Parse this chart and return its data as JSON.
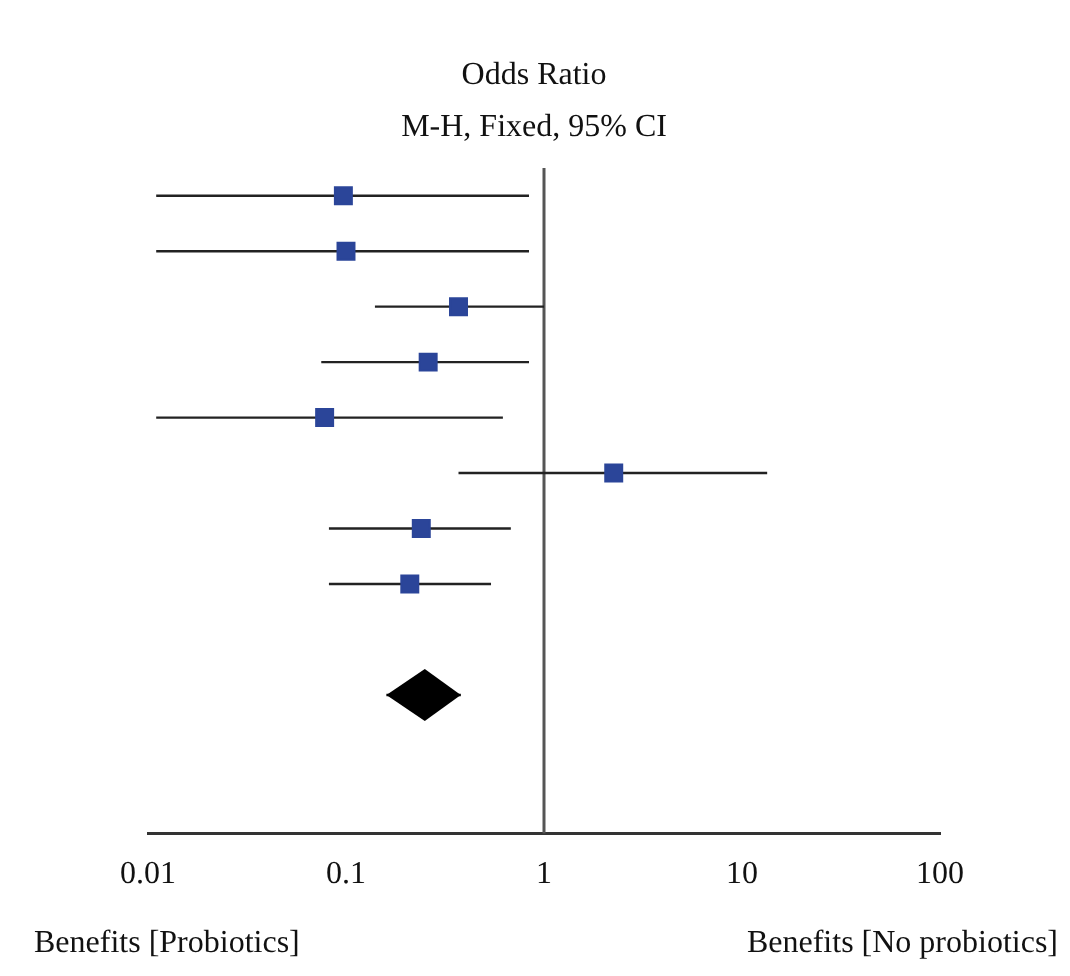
{
  "chart_data": {
    "type": "scatter",
    "title": "Odds Ratio",
    "subtitle": "M-H, Fixed, 95% CI",
    "orientation": "horizontal",
    "categories": [
      null,
      null,
      null,
      null,
      null,
      null,
      null,
      null,
      null,
      null,
      null,
      null
    ],
    "series": [
      {
        "marker": "square",
        "color": "#2b4599",
        "values": [
          0.097,
          0.1,
          0.37,
          0.26,
          0.078,
          2.25,
          0.24,
          0.21,
          null,
          null,
          null,
          null
        ],
        "errors": [
          [
            0.011,
            0.84
          ],
          [
            0.011,
            0.84
          ],
          [
            0.14,
            1.0
          ],
          [
            0.075,
            0.84
          ],
          [
            0.011,
            0.62
          ],
          [
            0.37,
            13.4
          ],
          [
            0.082,
            0.68
          ],
          [
            0.082,
            0.54
          ],
          null,
          null,
          null,
          null
        ]
      },
      {
        "marker": "diamond",
        "color": "#000000",
        "values": [
          null,
          null,
          null,
          null,
          null,
          null,
          null,
          null,
          null,
          0.25,
          null,
          null
        ],
        "errors": [
          null,
          null,
          null,
          null,
          null,
          null,
          null,
          null,
          null,
          [
            0.16,
            0.38
          ],
          null,
          null
        ]
      }
    ],
    "xlim": [
      0.01,
      100
    ],
    "xticks": [
      0.01,
      0.1,
      1,
      10,
      100
    ],
    "log": "x",
    "grid": false,
    "legend": false,
    "tick_labels": "x",
    "ref_lines": [
      {
        "axis": "x",
        "value": 1
      }
    ],
    "annotations": [
      "Benefits [Probiotics]",
      "Benefits [No probiotics]"
    ]
  }
}
